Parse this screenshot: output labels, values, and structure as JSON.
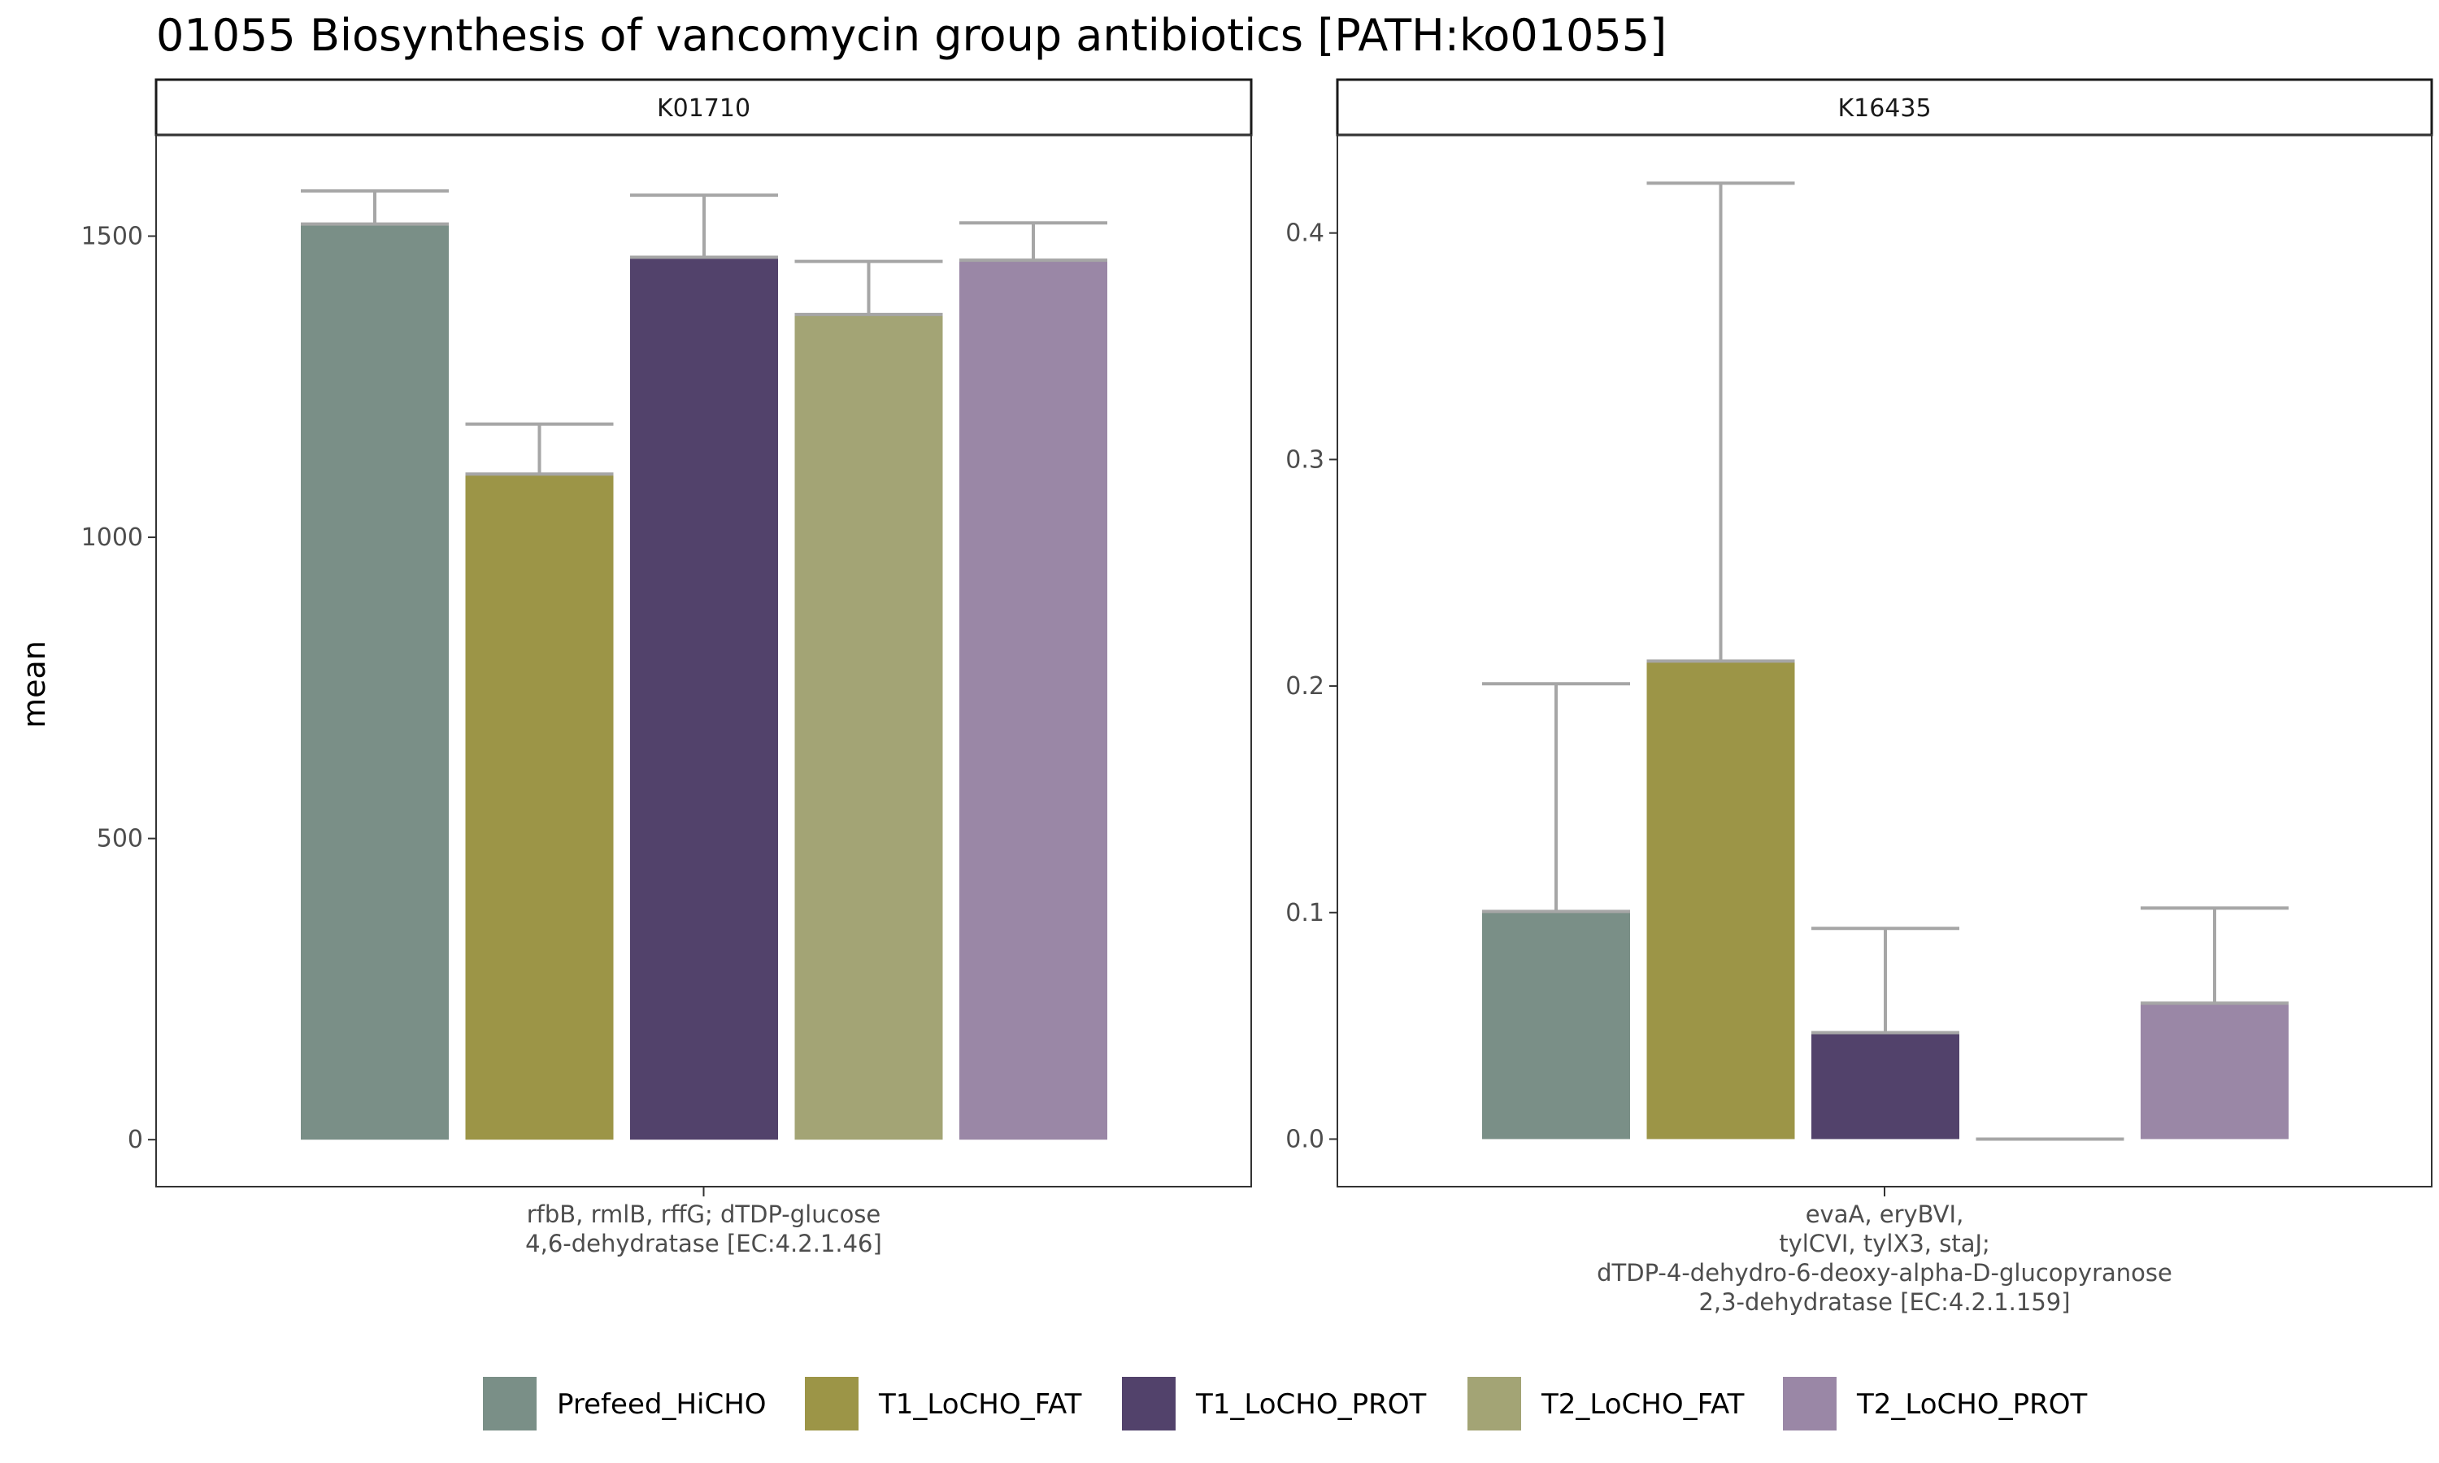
{
  "chart_data": {
    "type": "bar",
    "title": "01055 Biosynthesis of vancomycin group antibiotics [PATH:ko01055]",
    "ylabel": "mean",
    "legend_position": "bottom",
    "grid": false,
    "colors": {
      "Prefeed_HiCHO": "#7a8f87",
      "T1_LoCHO_FAT": "#9c9547",
      "T1_LoCHO_PROT": "#52426b",
      "T2_LoCHO_FAT": "#a3a475",
      "T2_LoCHO_PROT": "#9a87a6"
    },
    "groups": [
      "Prefeed_HiCHO",
      "T1_LoCHO_FAT",
      "T1_LoCHO_PROT",
      "T2_LoCHO_FAT",
      "T2_LoCHO_PROT"
    ],
    "panels": [
      {
        "strip": "K01710",
        "category_lines": [
          "rfbB, rmlB, rffG; dTDP-glucose",
          "4,6-dehydratase [EC:4.2.1.46]"
        ],
        "ylim": [
          -78,
          1668
        ],
        "yticks": [
          0,
          500,
          1000,
          1500
        ],
        "ytick_labels": [
          "0",
          "500",
          "1000",
          "1500"
        ],
        "values": [
          1520,
          1105,
          1465,
          1370,
          1460
        ],
        "error_upper": [
          1575,
          1188,
          1568,
          1458,
          1522
        ]
      },
      {
        "strip": "K16435",
        "category_lines": [
          "evaA, eryBVI,",
          "tylCVI, tylX3, staJ;",
          "dTDP-4-dehydro-6-deoxy-alpha-D-glucopyranose",
          "2,3-dehydratase [EC:4.2.1.159]"
        ],
        "ylim": [
          -0.021,
          0.4433
        ],
        "yticks": [
          0.0,
          0.1,
          0.2,
          0.3,
          0.4
        ],
        "ytick_labels": [
          "0.0",
          "0.1",
          "0.2",
          "0.3",
          "0.4"
        ],
        "values": [
          0.1005,
          0.211,
          0.047,
          0.0,
          0.06
        ],
        "error_upper": [
          0.201,
          0.422,
          0.093,
          0.0,
          0.102
        ]
      }
    ]
  }
}
